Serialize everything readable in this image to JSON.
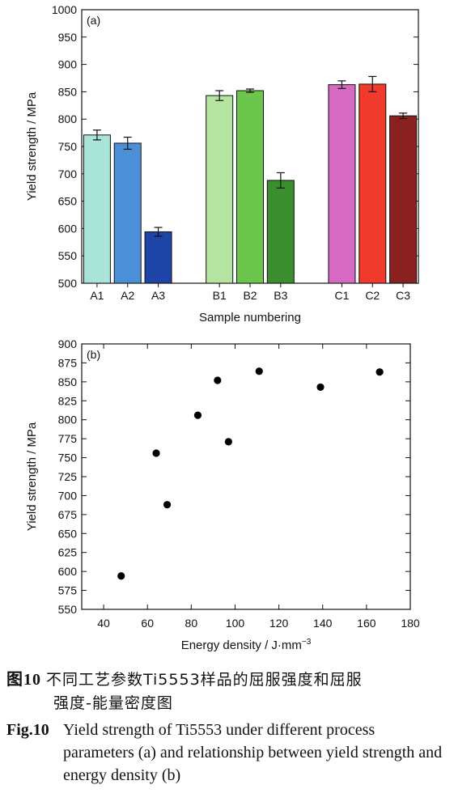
{
  "chart_data": [
    {
      "type": "bar",
      "panel_label": "(a)",
      "categories": [
        "A1",
        "A2",
        "A3",
        "B1",
        "B2",
        "B3",
        "C1",
        "C2",
        "C3"
      ],
      "values": [
        771,
        756,
        594,
        843,
        852,
        688,
        863,
        864,
        806
      ],
      "errors": [
        9,
        11,
        8,
        9,
        3,
        14,
        7,
        14,
        5
      ],
      "colors": [
        "#a8e4d8",
        "#4b8fd9",
        "#1f44a8",
        "#b5e3a2",
        "#6cc64d",
        "#3a8e2e",
        "#d66ac2",
        "#ef3a2c",
        "#8b2020"
      ],
      "groups": [
        [
          "A1",
          "A2",
          "A3"
        ],
        [
          "B1",
          "B2",
          "B3"
        ],
        [
          "C1",
          "C2",
          "C3"
        ]
      ],
      "xlabel": "Sample numbering",
      "ylabel": "Yield strength / MPa",
      "ylim": [
        500,
        1000
      ],
      "yticks": [
        500,
        550,
        600,
        650,
        700,
        750,
        800,
        850,
        900,
        950,
        1000
      ],
      "grid": false
    },
    {
      "type": "scatter",
      "panel_label": "(b)",
      "x": [
        48,
        64,
        69,
        83,
        92,
        97,
        111,
        139,
        166
      ],
      "y": [
        594,
        756,
        688,
        806,
        852,
        771,
        864,
        843,
        863
      ],
      "xlabel": "Energy density / J·mm",
      "xlabel_sup": "−3",
      "ylabel": "Yield strength / MPa",
      "xlim": [
        30,
        180
      ],
      "ylim": [
        550,
        900
      ],
      "xticks": [
        40,
        60,
        80,
        100,
        120,
        140,
        160,
        180
      ],
      "yticks": [
        550,
        575,
        600,
        625,
        650,
        675,
        700,
        725,
        750,
        775,
        800,
        825,
        850,
        875,
        900
      ],
      "grid": false
    }
  ],
  "caption": {
    "cn_head": "图10",
    "cn_line1": "不同工艺参数Ti5553样品的屈服强度和屈服",
    "cn_line2": "强度-能量密度图",
    "en_head": "Fig.10",
    "en_text": "Yield strength of Ti5553 under different process parameters (a) and relationship between yield strength and energy density (b)"
  }
}
